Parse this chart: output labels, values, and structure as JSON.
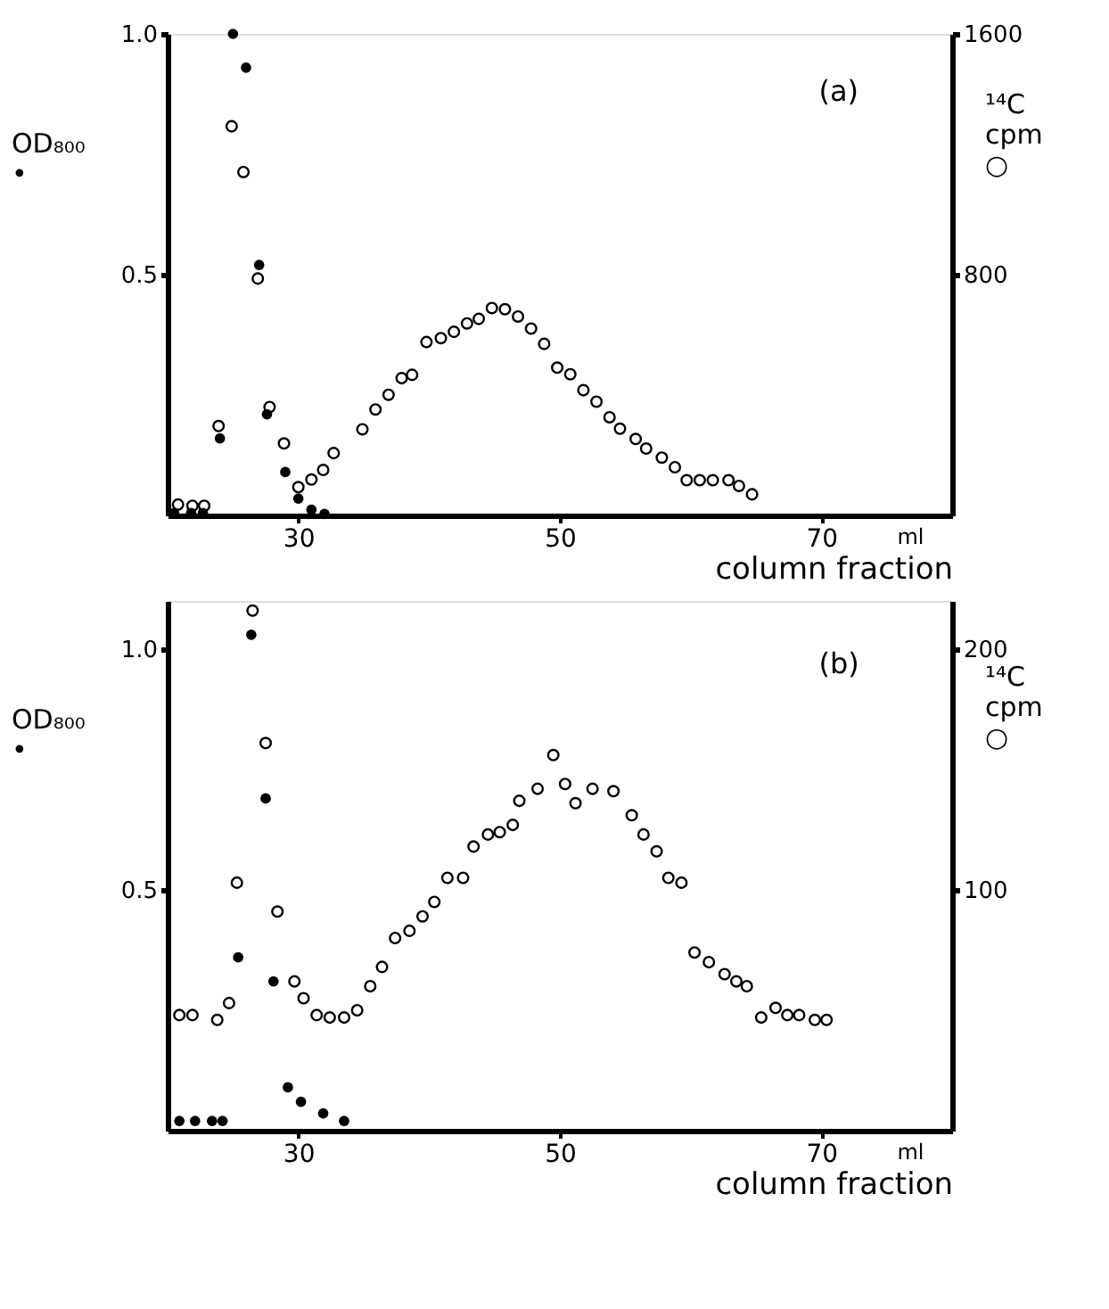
{
  "chart_data": [
    {
      "type": "scatter",
      "xlabel": "column fraction",
      "ylabel": "OD₈₀₀ •",
      "y2label": "¹⁴C cpm ○",
      "annotations": [
        "(a)",
        "ml"
      ],
      "xlim": [
        20,
        80
      ],
      "xticks": [
        30,
        50,
        70
      ],
      "ylim": [
        0,
        1.0
      ],
      "yticks": [
        0.5,
        {
          "value": 1.0,
          "label": "1.0"
        }
      ],
      "y2lim": [
        0,
        1600
      ],
      "y2ticks": [
        800,
        1600
      ],
      "grid": false,
      "marker": "circle",
      "series": [
        {
          "color": "#000000",
          "x": [
            20.5,
            21.8,
            22.7,
            24,
            25,
            26,
            27,
            27.6,
            29,
            30,
            31,
            32
          ],
          "values": [
            0.005,
            0.005,
            0.005,
            0.16,
            1.0,
            0.93,
            0.52,
            0.21,
            0.09,
            0.035,
            0.012,
            0.003
          ]
        },
        {
          "color": "#000000",
          "axis": "y2",
          "x": [
            20.8,
            21.9,
            22.8,
            23.9,
            24.9,
            25.8,
            26.9,
            27.8,
            28.9,
            30,
            31,
            31.9,
            32.7,
            34.9,
            35.9,
            36.9,
            37.9,
            38.7,
            39.8,
            40.9,
            41.9,
            42.9,
            43.8,
            44.8,
            45.8,
            46.8,
            47.8,
            48.8,
            49.8,
            50.8,
            51.8,
            52.8,
            53.8,
            54.6,
            55.8,
            56.6,
            57.8,
            58.8,
            59.7,
            60.7,
            61.7,
            62.9,
            63.7,
            64.7
          ],
          "values": [
            36,
            32,
            32,
            297,
            1293,
            1141,
            787,
            360,
            239,
            94,
            119,
            151,
            207,
            286,
            352,
            401,
            456,
            467,
            576,
            589,
            610,
            638,
            653,
            689,
            685,
            661,
            621,
            570,
            491,
            469,
            416,
            378,
            326,
            288,
            254,
            222,
            192,
            160,
            117,
            117,
            117,
            117,
            98,
            70
          ]
        }
      ]
    },
    {
      "type": "scatter",
      "xlabel": "column fraction",
      "ylabel": "OD₈₀₀ •",
      "y2label": "¹⁴C cpm ○",
      "annotations": [
        "(b)",
        "ml"
      ],
      "xlim": [
        20,
        80
      ],
      "xticks": [
        30,
        50,
        70
      ],
      "ylim": [
        0,
        1.1
      ],
      "yticks": [
        0.5,
        {
          "value": 1.0,
          "label": "1.0"
        }
      ],
      "y2lim": [
        0,
        220
      ],
      "y2ticks": [
        100,
        200
      ],
      "grid": false,
      "marker": "circle",
      "series": [
        {
          "color": "#000000",
          "x": [
            20.9,
            22.1,
            23.4,
            24.2,
            25.4,
            26.4,
            27.5,
            28.1,
            29.2,
            30.2,
            31.9,
            33.5
          ],
          "values": [
            0.02,
            0.02,
            0.02,
            0.02,
            0.36,
            1.03,
            0.69,
            0.31,
            0.09,
            0.06,
            0.036,
            0.02
          ]
        },
        {
          "color": "#000000",
          "axis": "y2",
          "x": [
            20.9,
            21.9,
            23.8,
            24.7,
            25.3,
            26.5,
            27.5,
            28.4,
            29.7,
            30.4,
            31.4,
            32.4,
            33.5,
            34.5,
            35.5,
            36.4,
            37.4,
            38.5,
            39.5,
            40.4,
            41.4,
            42.6,
            43.4,
            44.5,
            45.4,
            46.4,
            46.9,
            48.3,
            49.5,
            50.4,
            51.2,
            52.5,
            54.1,
            55.5,
            56.4,
            57.4,
            58.3,
            59.3,
            60.3,
            61.4,
            62.6,
            63.5,
            64.3,
            65.4,
            66.5,
            67.4,
            68.3,
            69.5,
            70.4
          ],
          "values": [
            48,
            48,
            46,
            53,
            103,
            216,
            161,
            91,
            62,
            55,
            48,
            47,
            47,
            50,
            60,
            68,
            80,
            83,
            89,
            95,
            105,
            105,
            118,
            123,
            124,
            127,
            137,
            142,
            156,
            144,
            136,
            142,
            141,
            131,
            123,
            116,
            105,
            103,
            74,
            70,
            65,
            62,
            60,
            47,
            51,
            48,
            48,
            46,
            46
          ]
        }
      ]
    }
  ]
}
